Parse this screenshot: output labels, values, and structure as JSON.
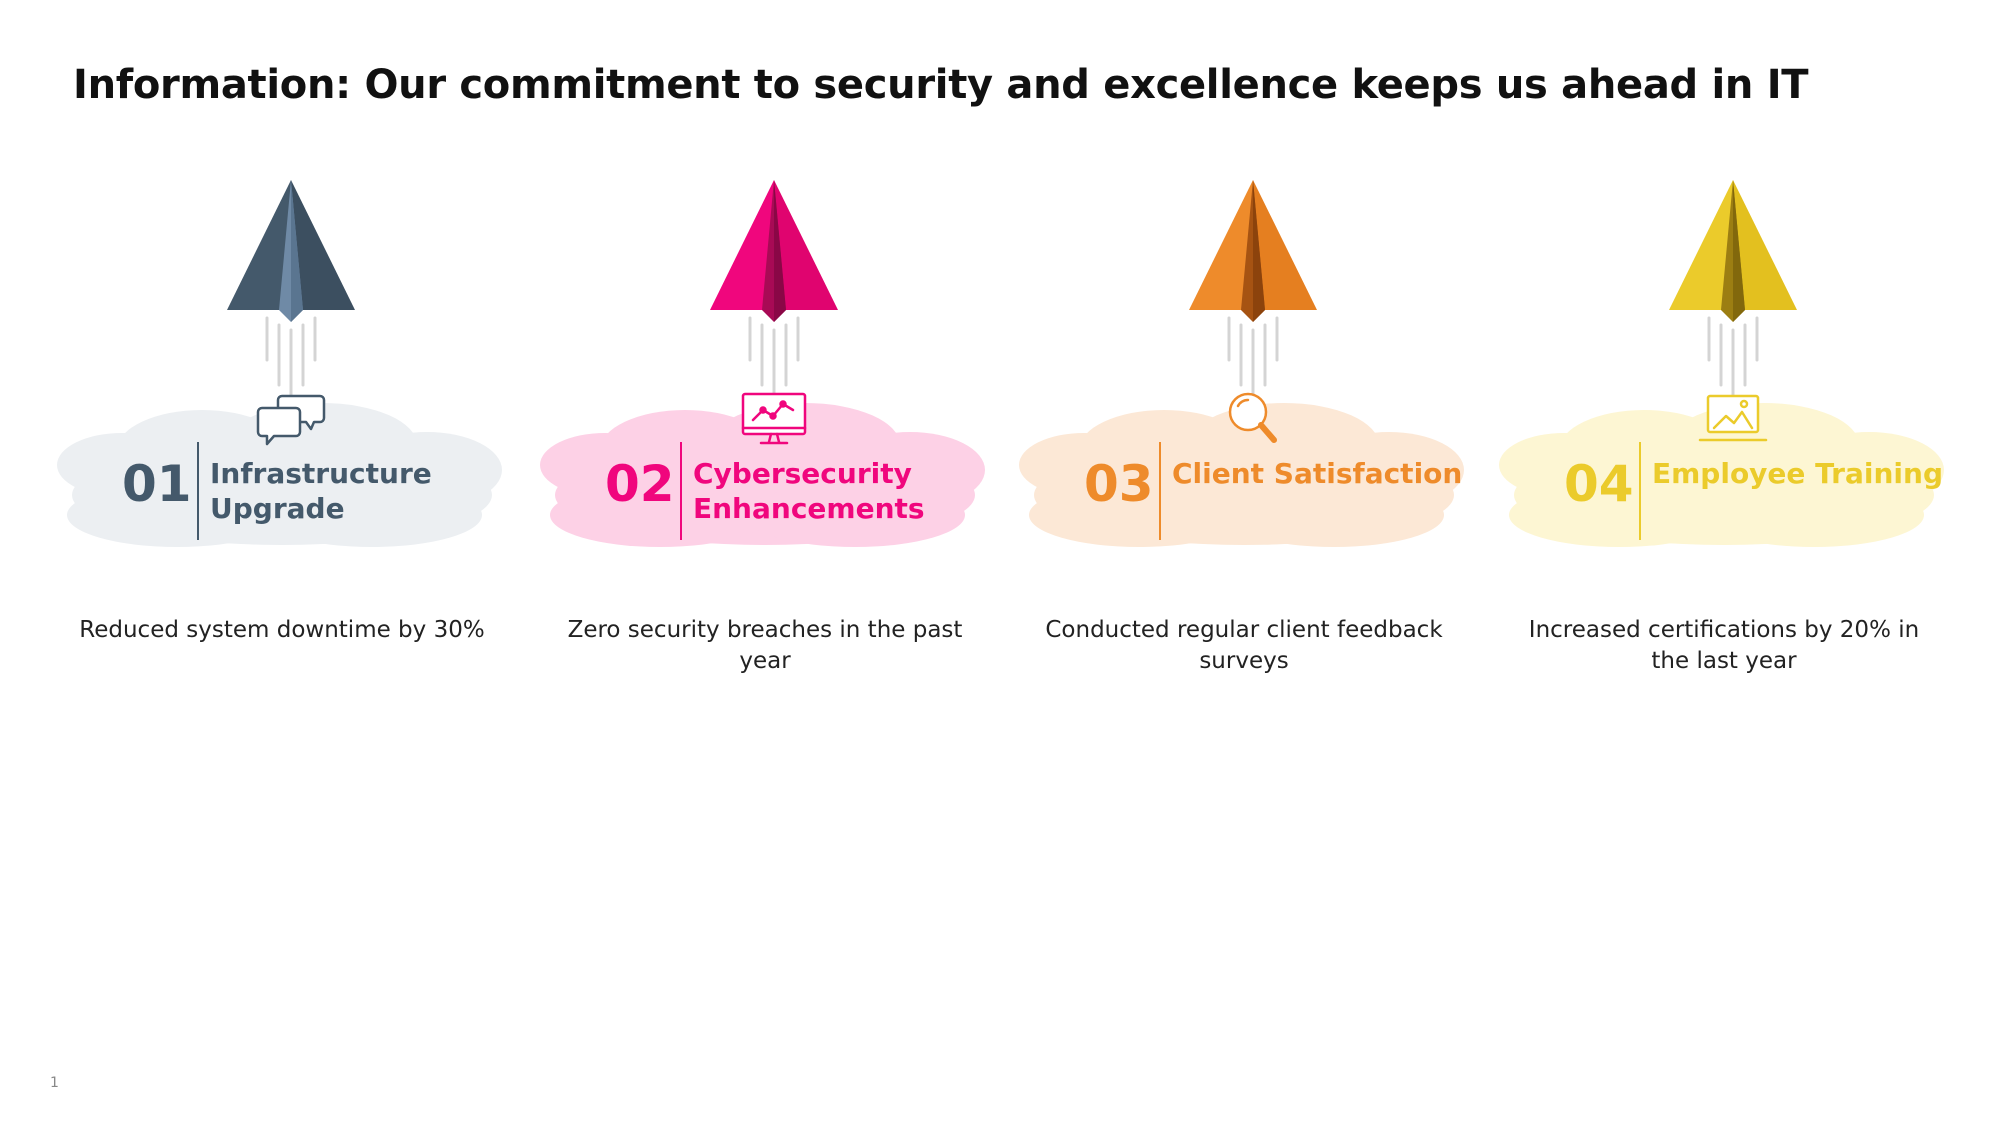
{
  "slide": {
    "title": "Information: Our commitment to security and excellence keeps us ahead in IT",
    "page_number": "1"
  },
  "steps": [
    {
      "number": "01",
      "title": "Infrastructure Upgrade",
      "description": "Reduced system downtime by 30%",
      "color": "#44596b",
      "cloud_color": "#eceff2",
      "icon": "chat-bubbles-icon"
    },
    {
      "number": "02",
      "title": "Cybersecurity Enhancements",
      "description": "Zero security breaches in the past year",
      "color": "#f0067d",
      "cloud_color": "#fdd1e6",
      "icon": "monitor-chart-icon"
    },
    {
      "number": "03",
      "title": "Client Satisfaction",
      "description": "Conducted regular client feedback surveys",
      "color": "#ee8b2b",
      "cloud_color": "#fce8d6",
      "icon": "magnifier-icon"
    },
    {
      "number": "04",
      "title": "Employee Training",
      "description": "Increased certifications by 20% in the last year",
      "color": "#ebcb2b",
      "cloud_color": "#fdf6d3",
      "icon": "image-laptop-icon"
    }
  ]
}
